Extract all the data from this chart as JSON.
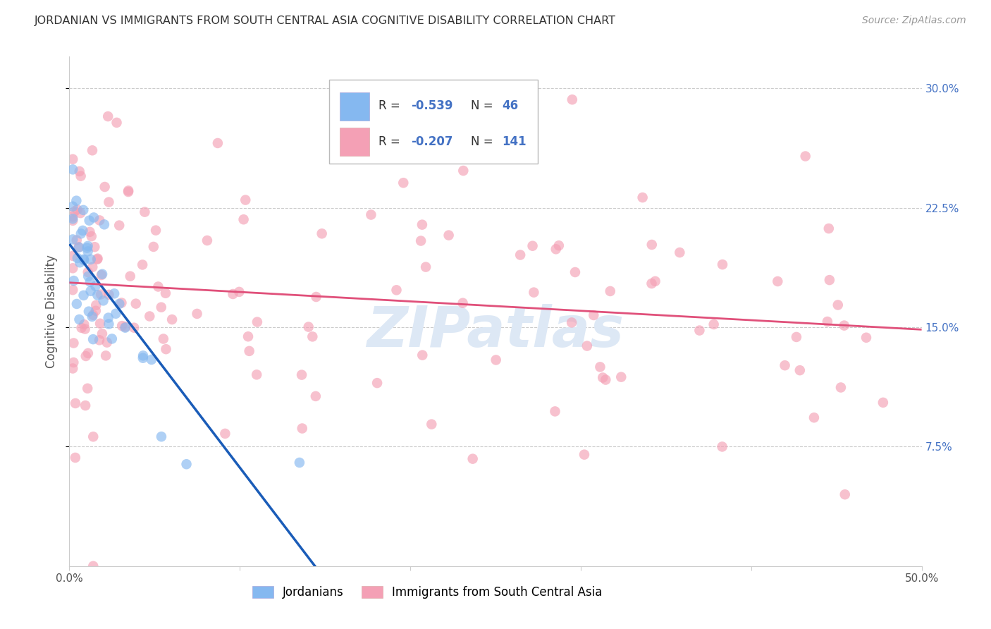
{
  "title": "JORDANIAN VS IMMIGRANTS FROM SOUTH CENTRAL ASIA COGNITIVE DISABILITY CORRELATION CHART",
  "source": "Source: ZipAtlas.com",
  "ylabel": "Cognitive Disability",
  "xlim": [
    0.0,
    0.5
  ],
  "ylim": [
    0.0,
    0.32
  ],
  "R_jordanian": -0.539,
  "N_jordanian": 46,
  "R_immigrant": -0.207,
  "N_immigrant": 141,
  "color_jordanian": "#85b8f0",
  "color_immigrant": "#f4a0b5",
  "line_color_jordanian": "#1a5cb8",
  "line_color_immigrant": "#e0507a",
  "line_color_dash": "#b0b8d8",
  "background": "#ffffff",
  "grid_color": "#cccccc",
  "ytick_color": "#4472c4",
  "xtick_color": "#555555",
  "title_color": "#333333",
  "source_color": "#999999",
  "ylabel_color": "#555555",
  "watermark_color": "#dde8f5",
  "scatter_size": 110,
  "scatter_alpha": 0.65,
  "yticks": [
    0.075,
    0.15,
    0.225,
    0.3
  ],
  "ytick_labels": [
    "7.5%",
    "15.0%",
    "22.5%",
    "30.0%"
  ],
  "xticks": [
    0.0,
    0.1,
    0.2,
    0.3,
    0.4,
    0.5
  ],
  "xtick_labels": [
    "0.0%",
    "",
    "",
    "",
    "",
    "50.0%"
  ]
}
